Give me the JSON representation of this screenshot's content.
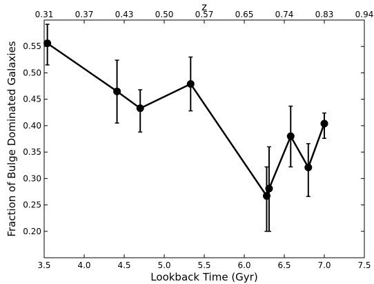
{
  "chart_data": {
    "type": "scatter",
    "title": "",
    "xlabel": "Lookback Time (Gyr)",
    "ylabel": "Fraction of Bulge Dominated Galaxies",
    "secondary_xlabel": "z",
    "xlim": [
      3.5,
      7.5
    ],
    "ylim": [
      0.15,
      0.6
    ],
    "x_ticks": [
      3.5,
      4.0,
      4.5,
      5.0,
      5.5,
      6.0,
      6.5,
      7.0,
      7.5
    ],
    "x_tick_labels": [
      "3.5",
      "4.0",
      "4.5",
      "5.0",
      "5.5",
      "6.0",
      "6.5",
      "7.0",
      "7.5"
    ],
    "y_ticks": [
      0.2,
      0.25,
      0.3,
      0.35,
      0.4,
      0.45,
      0.5,
      0.55
    ],
    "y_tick_labels": [
      "0.20",
      "0.25",
      "0.30",
      "0.35",
      "0.40",
      "0.45",
      "0.50",
      "0.55"
    ],
    "secondary_x_ticks": [
      3.5,
      4.0,
      4.5,
      5.0,
      5.5,
      6.0,
      6.5,
      7.0,
      7.5
    ],
    "secondary_x_tick_labels": [
      "0.31",
      "0.37",
      "0.43",
      "0.50",
      "0.57",
      "0.65",
      "0.74",
      "0.83",
      "0.94"
    ],
    "grid": false,
    "legend": "none",
    "series": [
      {
        "color": "#000000",
        "connected": true,
        "points": [
          {
            "x": 3.54,
            "y": 0.556,
            "ylow": 0.515,
            "yhigh": 0.592
          },
          {
            "x": 4.41,
            "y": 0.465,
            "ylow": 0.405,
            "yhigh": 0.524
          },
          {
            "x": 4.7,
            "y": 0.433,
            "ylow": 0.388,
            "yhigh": 0.468
          },
          {
            "x": 5.33,
            "y": 0.479,
            "ylow": 0.428,
            "yhigh": 0.53
          },
          {
            "x": 6.28,
            "y": 0.267,
            "ylow": 0.2,
            "yhigh": 0.322
          },
          {
            "x": 6.31,
            "y": 0.281,
            "ylow": 0.2,
            "yhigh": 0.36
          },
          {
            "x": 6.58,
            "y": 0.38,
            "ylow": 0.322,
            "yhigh": 0.437
          },
          {
            "x": 6.8,
            "y": 0.321,
            "ylow": 0.266,
            "yhigh": 0.366
          },
          {
            "x": 7.0,
            "y": 0.404,
            "ylow": 0.376,
            "yhigh": 0.424
          }
        ]
      }
    ]
  }
}
